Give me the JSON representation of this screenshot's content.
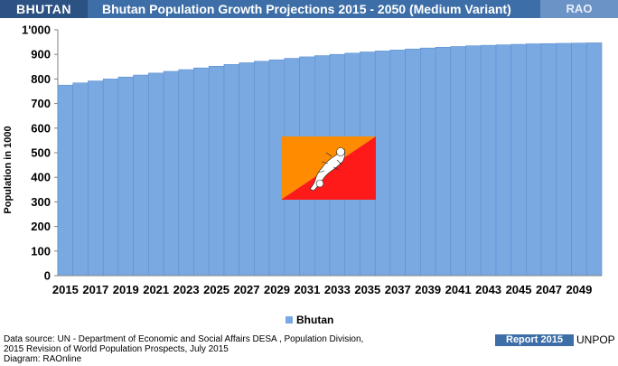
{
  "header": {
    "country": "BHUTAN",
    "title": "Bhutan Population Growth Projections 2015 - 2050 (Medium Variant)",
    "brand": "RAO"
  },
  "footer": {
    "source_lines": [
      "Data source: UN -  Department of Economic and Social Affairs DESA , Population Division,",
      "2015 Revision of World Population Prospects, July 2015",
      "Diagram: RAOnline"
    ],
    "report_badge": "Report 2015",
    "publisher": "UNPOP"
  },
  "colors": {
    "header_bar": "#3d6ea7",
    "country_box": "#2c5283",
    "brand_box": "#6c93c6",
    "bars": "#7aa9e2",
    "bar_edge": "#5b8fd1",
    "flag_yellow": "#ff8c00",
    "flag_red": "#ff1a1a"
  },
  "flag": {
    "icon": "bhutan-flag"
  },
  "chart_data": {
    "type": "bar",
    "ylabel": "Population  in 1000",
    "xlabel": "",
    "ylim": [
      0,
      1000
    ],
    "yticks": [
      "0",
      "100",
      "200",
      "300",
      "400",
      "500",
      "600",
      "700",
      "800",
      "900",
      "1'000"
    ],
    "xtick_labels": [
      "2015",
      "2017",
      "2019",
      "2021",
      "2023",
      "2025",
      "2027",
      "2029",
      "2031",
      "2033",
      "2035",
      "2037",
      "2039",
      "2041",
      "2043",
      "2045",
      "2047",
      "2049"
    ],
    "grid": false,
    "legend": "bottom-center",
    "categories": [
      "2015",
      "2016",
      "2017",
      "2018",
      "2019",
      "2020",
      "2021",
      "2022",
      "2023",
      "2024",
      "2025",
      "2026",
      "2027",
      "2028",
      "2029",
      "2030",
      "2031",
      "2032",
      "2033",
      "2034",
      "2035",
      "2036",
      "2037",
      "2038",
      "2039",
      "2040",
      "2041",
      "2042",
      "2043",
      "2044",
      "2045",
      "2046",
      "2047",
      "2048",
      "2049",
      "2050"
    ],
    "series": [
      {
        "name": "Bhutan",
        "values": [
          775,
          784,
          792,
          800,
          808,
          816,
          824,
          831,
          838,
          845,
          852,
          859,
          866,
          872,
          878,
          884,
          890,
          895,
          900,
          905,
          910,
          914,
          918,
          922,
          926,
          929,
          932,
          935,
          937,
          939,
          941,
          943,
          944,
          945,
          946,
          947
        ]
      }
    ]
  }
}
